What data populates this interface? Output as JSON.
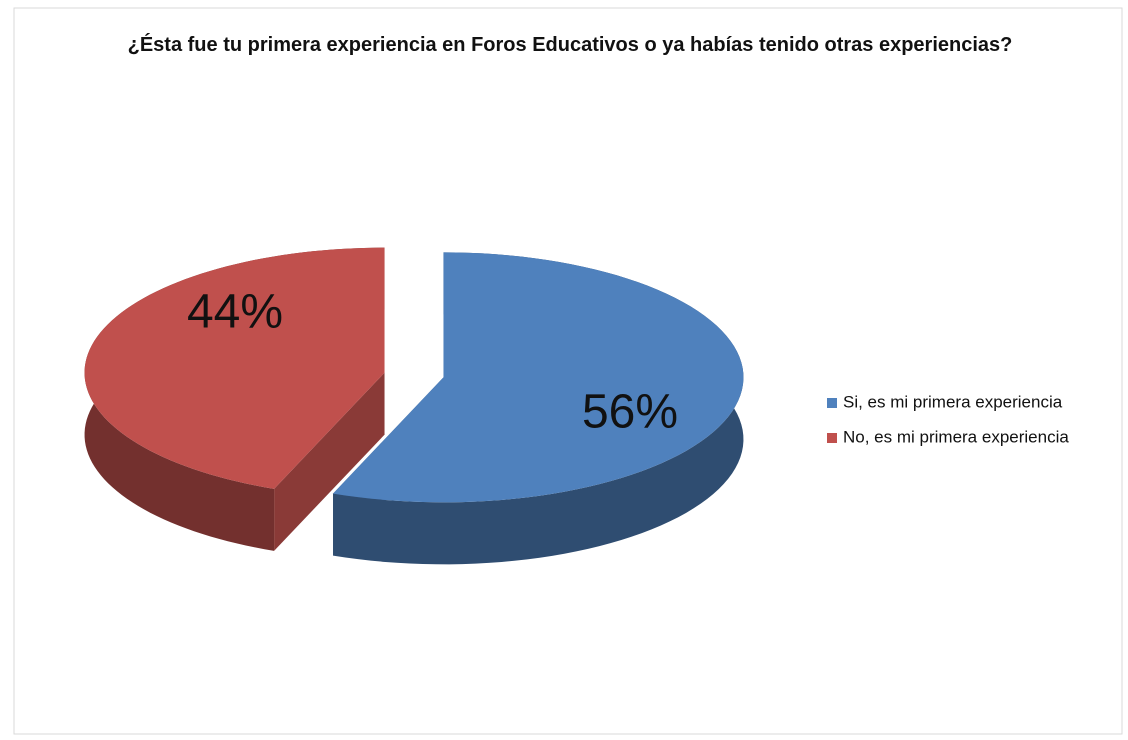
{
  "chart_data": {
    "type": "pie3d",
    "title": "¿Ésta fue tu primera experiencia en Foros Educativos o ya habías tenido otras experiencias?",
    "categories": [
      "Si, es mi primera experiencia",
      "No, es mi primera experiencia"
    ],
    "values": [
      56,
      44
    ],
    "value_labels": [
      "56%",
      "44%"
    ],
    "colors": [
      "#4f81bd",
      "#c0504d"
    ],
    "legend": "right"
  }
}
